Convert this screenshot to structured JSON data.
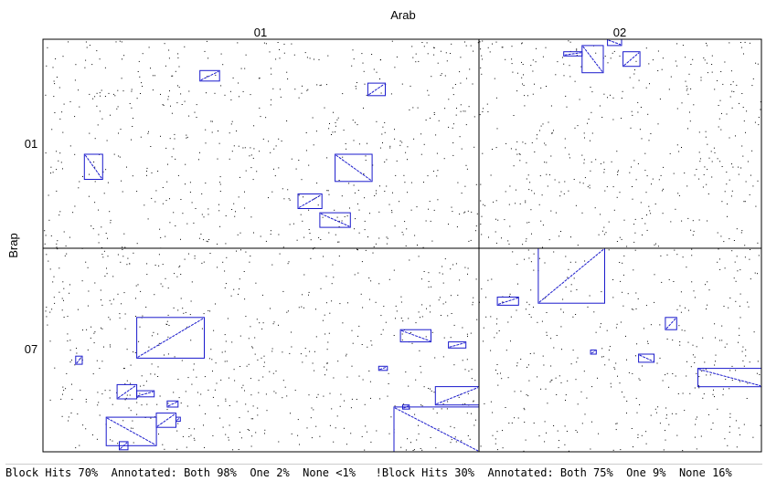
{
  "chart_data": {
    "type": "dotplot",
    "title": "Arab",
    "xlabel": "Arab",
    "ylabel": "Brap",
    "x_segments": [
      "01",
      "02"
    ],
    "y_segments": [
      "01",
      "07"
    ],
    "grid": true,
    "colors": {
      "dots": "#000000",
      "blocks": "#1a1acc",
      "frame": "#000000"
    },
    "blocks": [
      {
        "x_segment": "01",
        "y_segment": "01",
        "x": [
          0.36,
          0.405
        ],
        "y": [
          0.15,
          0.2
        ],
        "orientation": "forward"
      },
      {
        "x_segment": "01",
        "y_segment": "01",
        "x": [
          0.745,
          0.785
        ],
        "y": [
          0.21,
          0.27
        ],
        "orientation": "forward"
      },
      {
        "x_segment": "01",
        "y_segment": "01",
        "x": [
          0.095,
          0.137
        ],
        "y": [
          0.55,
          0.67
        ],
        "orientation": "reverse"
      },
      {
        "x_segment": "01",
        "y_segment": "01",
        "x": [
          0.67,
          0.755
        ],
        "y": [
          0.55,
          0.68
        ],
        "orientation": "reverse"
      },
      {
        "x_segment": "01",
        "y_segment": "01",
        "x": [
          0.585,
          0.64
        ],
        "y": [
          0.74,
          0.81
        ],
        "orientation": "forward"
      },
      {
        "x_segment": "01",
        "y_segment": "01",
        "x": [
          0.635,
          0.705
        ],
        "y": [
          0.83,
          0.9
        ],
        "orientation": "reverse"
      },
      {
        "x_segment": "02",
        "y_segment": "01",
        "x": [
          0.3,
          0.365
        ],
        "y": [
          0.06,
          0.08
        ],
        "orientation": "forward"
      },
      {
        "x_segment": "02",
        "y_segment": "01",
        "x": [
          0.365,
          0.44
        ],
        "y": [
          0.03,
          0.16
        ],
        "orientation": "reverse"
      },
      {
        "x_segment": "02",
        "y_segment": "01",
        "x": [
          0.455,
          0.505
        ],
        "y": [
          0.0,
          0.03
        ],
        "orientation": "reverse"
      },
      {
        "x_segment": "02",
        "y_segment": "01",
        "x": [
          0.51,
          0.57
        ],
        "y": [
          0.06,
          0.13
        ],
        "orientation": "forward"
      },
      {
        "x_segment": "02",
        "y_segment": "07",
        "x": [
          0.21,
          0.445
        ],
        "y": [
          0.0,
          0.27
        ],
        "orientation": "forward"
      },
      {
        "x_segment": "02",
        "y_segment": "07",
        "x": [
          0.065,
          0.14
        ],
        "y": [
          0.24,
          0.28
        ],
        "orientation": "forward"
      },
      {
        "x_segment": "02",
        "y_segment": "07",
        "x": [
          0.66,
          0.7
        ],
        "y": [
          0.34,
          0.4
        ],
        "orientation": "forward"
      },
      {
        "x_segment": "02",
        "y_segment": "07",
        "x": [
          0.395,
          0.415
        ],
        "y": [
          0.5,
          0.52
        ],
        "orientation": "forward"
      },
      {
        "x_segment": "02",
        "y_segment": "07",
        "x": [
          0.565,
          0.62
        ],
        "y": [
          0.52,
          0.56
        ],
        "orientation": "reverse"
      },
      {
        "x_segment": "02",
        "y_segment": "07",
        "x": [
          0.775,
          1.0
        ],
        "y": [
          0.59,
          0.68
        ],
        "orientation": "reverse"
      },
      {
        "x_segment": "01",
        "y_segment": "07",
        "x": [
          0.215,
          0.37
        ],
        "y": [
          0.34,
          0.54
        ],
        "orientation": "forward"
      },
      {
        "x_segment": "01",
        "y_segment": "07",
        "x": [
          0.075,
          0.09
        ],
        "y": [
          0.53,
          0.57
        ],
        "orientation": "forward"
      },
      {
        "x_segment": "01",
        "y_segment": "07",
        "x": [
          0.82,
          0.89
        ],
        "y": [
          0.4,
          0.46
        ],
        "orientation": "reverse"
      },
      {
        "x_segment": "01",
        "y_segment": "07",
        "x": [
          0.93,
          0.97
        ],
        "y": [
          0.46,
          0.49
        ],
        "orientation": "forward"
      },
      {
        "x_segment": "01",
        "y_segment": "07",
        "x": [
          0.77,
          0.79
        ],
        "y": [
          0.58,
          0.6
        ],
        "orientation": "forward"
      },
      {
        "x_segment": "01",
        "y_segment": "07",
        "x": [
          0.9,
          1.0
        ],
        "y": [
          0.68,
          0.77
        ],
        "orientation": "forward"
      },
      {
        "x_segment": "01",
        "y_segment": "07",
        "x": [
          0.825,
          0.84
        ],
        "y": [
          0.77,
          0.79
        ],
        "orientation": "forward"
      },
      {
        "x_segment": "01",
        "y_segment": "07",
        "x": [
          0.805,
          1.0
        ],
        "y": [
          0.78,
          1.0
        ],
        "orientation": "reverse"
      },
      {
        "x_segment": "01",
        "y_segment": "07",
        "x": [
          0.17,
          0.215
        ],
        "y": [
          0.67,
          0.74
        ],
        "orientation": "forward"
      },
      {
        "x_segment": "01",
        "y_segment": "07",
        "x": [
          0.215,
          0.255
        ],
        "y": [
          0.7,
          0.73
        ],
        "orientation": "forward"
      },
      {
        "x_segment": "01",
        "y_segment": "07",
        "x": [
          0.285,
          0.31
        ],
        "y": [
          0.75,
          0.78
        ],
        "orientation": "forward"
      },
      {
        "x_segment": "01",
        "y_segment": "07",
        "x": [
          0.26,
          0.305
        ],
        "y": [
          0.81,
          0.88
        ],
        "orientation": "forward"
      },
      {
        "x_segment": "01",
        "y_segment": "07",
        "x": [
          0.305,
          0.315
        ],
        "y": [
          0.83,
          0.85
        ],
        "orientation": "forward"
      },
      {
        "x_segment": "01",
        "y_segment": "07",
        "x": [
          0.145,
          0.26
        ],
        "y": [
          0.83,
          0.97
        ],
        "orientation": "reverse"
      },
      {
        "x_segment": "01",
        "y_segment": "07",
        "x": [
          0.175,
          0.195
        ],
        "y": [
          0.95,
          0.99
        ],
        "orientation": "forward"
      }
    ]
  },
  "footer": {
    "block_hits": "Block Hits 70%",
    "annotated_hits": "Annotated: Both 98%  One 2%  None <1%",
    "nonblock_hits": "!Block Hits 30%",
    "annotated_nonblock": "Annotated: Both 75%  One 9%  None 16%"
  }
}
